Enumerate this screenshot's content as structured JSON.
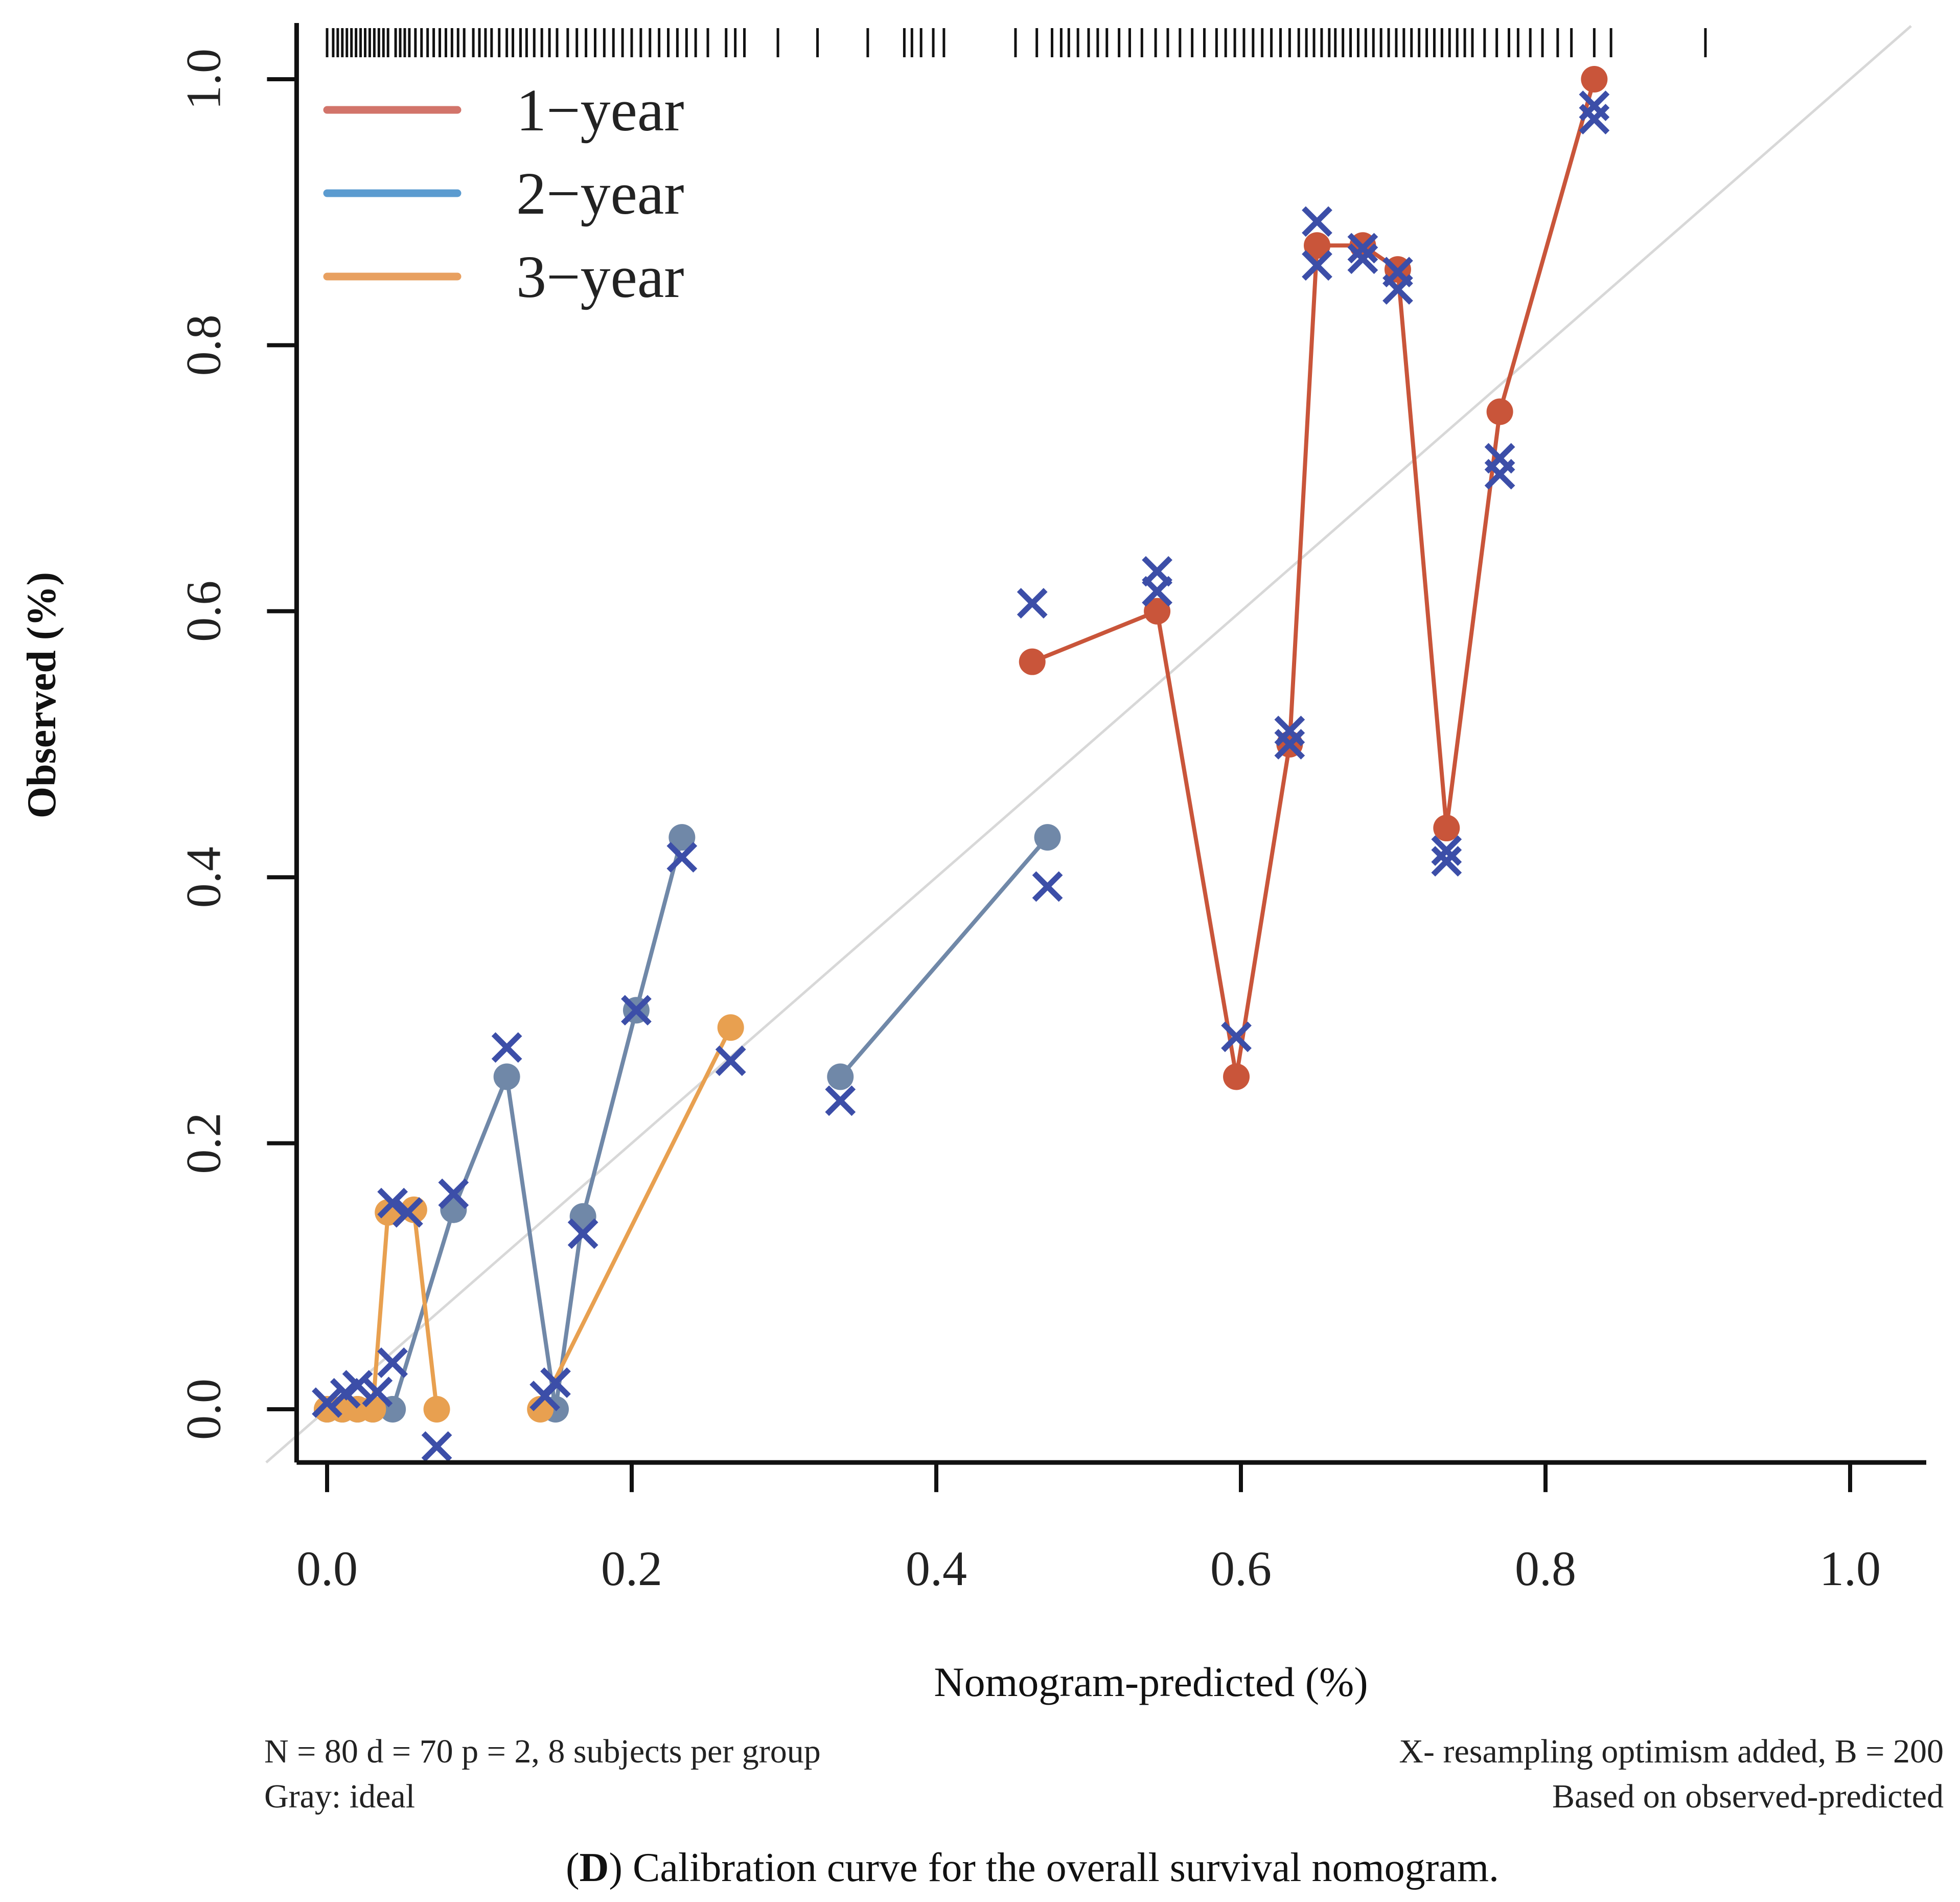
{
  "colors": {
    "one_year": "#c9553a",
    "two_year": "#7088a8",
    "three_year": "#e8a050",
    "legend_one_year": "#d2746a",
    "legend_two_year": "#5b9bd0",
    "legend_three_year": "#e8a060",
    "cross": "#3c4ea8",
    "ideal": "#d8d8d8",
    "axis": "#111111"
  },
  "chart_data": {
    "type": "line",
    "xlabel": "Nomogram-predicted (%)",
    "ylabel": "Observed (%)",
    "xlim": [
      -0.02,
      1.05
    ],
    "ylim": [
      -0.04,
      1.05
    ],
    "x_ticks": [
      0.0,
      0.2,
      0.4,
      0.6,
      0.8,
      1.0
    ],
    "y_ticks": [
      0.0,
      0.2,
      0.4,
      0.6,
      0.8,
      1.0
    ],
    "x_tick_labels": [
      "0.0",
      "0.2",
      "0.4",
      "0.6",
      "0.8",
      "1.0"
    ],
    "y_tick_labels": [
      "0.0",
      "0.2",
      "0.4",
      "0.6",
      "0.8",
      "1.0"
    ],
    "grid": false,
    "legend_position": "top-left",
    "ideal_line": [
      [
        -0.04,
        -0.04
      ],
      [
        1.04,
        1.04
      ]
    ],
    "series": [
      {
        "name": "1−year",
        "color_key": "one_year",
        "segments": [
          [
            [
              0.463,
              0.562
            ],
            [
              0.545,
              0.6
            ],
            [
              0.597,
              0.25
            ],
            [
              0.632,
              0.5
            ],
            [
              0.65,
              0.875
            ],
            [
              0.68,
              0.875
            ],
            [
              0.703,
              0.857
            ],
            [
              0.735,
              0.437
            ],
            [
              0.77,
              0.75
            ],
            [
              0.832,
              1.0
            ]
          ]
        ],
        "crosses": [
          [
            0.463,
            0.606
          ],
          [
            0.545,
            0.63
          ],
          [
            0.545,
            0.615
          ],
          [
            0.597,
            0.28
          ],
          [
            0.632,
            0.51
          ],
          [
            0.632,
            0.5
          ],
          [
            0.65,
            0.893
          ],
          [
            0.65,
            0.86
          ],
          [
            0.68,
            0.873
          ],
          [
            0.68,
            0.865
          ],
          [
            0.703,
            0.855
          ],
          [
            0.703,
            0.842
          ],
          [
            0.735,
            0.42
          ],
          [
            0.735,
            0.412
          ],
          [
            0.77,
            0.715
          ],
          [
            0.77,
            0.703
          ],
          [
            0.832,
            0.98
          ],
          [
            0.832,
            0.97
          ]
        ]
      },
      {
        "name": "2−year",
        "color_key": "two_year",
        "segments": [
          [
            [
              0.0,
              0.0
            ],
            [
              0.01,
              0.0
            ],
            [
              0.02,
              0.0
            ],
            [
              0.03,
              0.0
            ],
            [
              0.043,
              0.0
            ],
            [
              0.083,
              0.15
            ],
            [
              0.118,
              0.25
            ],
            [
              0.15,
              0.0
            ],
            [
              0.168,
              0.145
            ],
            [
              0.203,
              0.3
            ],
            [
              0.233,
              0.43
            ]
          ],
          [
            [
              0.337,
              0.25
            ],
            [
              0.473,
              0.43
            ]
          ]
        ],
        "crosses": [
          [
            0.0,
            0.005
          ],
          [
            0.012,
            0.012
          ],
          [
            0.02,
            0.018
          ],
          [
            0.033,
            0.013
          ],
          [
            0.043,
            0.155
          ],
          [
            0.053,
            0.148
          ],
          [
            0.043,
            0.035
          ],
          [
            0.072,
            -0.028
          ],
          [
            0.083,
            0.162
          ],
          [
            0.118,
            0.272
          ],
          [
            0.143,
            0.01
          ],
          [
            0.15,
            0.02
          ],
          [
            0.168,
            0.132
          ],
          [
            0.203,
            0.3
          ],
          [
            0.233,
            0.415
          ],
          [
            0.265,
            0.262
          ],
          [
            0.337,
            0.232
          ],
          [
            0.473,
            0.393
          ]
        ]
      },
      {
        "name": "3−year",
        "color_key": "three_year",
        "segments": [
          [
            [
              0.0,
              0.0
            ],
            [
              0.01,
              0.0
            ],
            [
              0.02,
              0.0
            ],
            [
              0.03,
              0.0
            ],
            [
              0.04,
              0.148
            ],
            [
              0.057,
              0.15
            ],
            [
              0.072,
              0.0
            ]
          ],
          [
            [
              0.14,
              0.0
            ],
            [
              0.265,
              0.287
            ]
          ]
        ],
        "crosses": []
      }
    ],
    "rug_predicted": [
      0.0,
      0.004,
      0.007,
      0.01,
      0.013,
      0.016,
      0.019,
      0.022,
      0.025,
      0.028,
      0.031,
      0.034,
      0.037,
      0.04,
      0.045,
      0.048,
      0.051,
      0.054,
      0.058,
      0.062,
      0.066,
      0.07,
      0.074,
      0.078,
      0.082,
      0.086,
      0.09,
      0.096,
      0.1,
      0.104,
      0.108,
      0.113,
      0.118,
      0.122,
      0.127,
      0.131,
      0.136,
      0.141,
      0.146,
      0.151,
      0.158,
      0.164,
      0.17,
      0.176,
      0.182,
      0.188,
      0.194,
      0.2,
      0.206,
      0.212,
      0.218,
      0.224,
      0.23,
      0.236,
      0.242,
      0.25,
      0.262,
      0.268,
      0.274,
      0.296,
      0.322,
      0.355,
      0.379,
      0.384,
      0.39,
      0.398,
      0.405,
      0.452,
      0.466,
      0.476,
      0.482,
      0.487,
      0.493,
      0.5,
      0.506,
      0.512,
      0.52,
      0.527,
      0.535,
      0.544,
      0.552,
      0.56,
      0.568,
      0.576,
      0.584,
      0.59,
      0.596,
      0.602,
      0.608,
      0.614,
      0.62,
      0.626,
      0.632,
      0.638,
      0.643,
      0.648,
      0.653,
      0.658,
      0.662,
      0.667,
      0.672,
      0.677,
      0.682,
      0.687,
      0.692,
      0.697,
      0.702,
      0.707,
      0.712,
      0.717,
      0.722,
      0.727,
      0.732,
      0.737,
      0.742,
      0.747,
      0.752,
      0.76,
      0.768,
      0.776,
      0.782,
      0.79,
      0.798,
      0.808,
      0.817,
      0.832,
      0.843,
      0.905
    ]
  },
  "footnote": {
    "left_line1": "N = 80 d = 70 p = 2, 8 subjects per group",
    "left_line2": "Gray: ideal",
    "right_line1": "X- resampling optimism added, B = 200",
    "right_line2": "Based on observed-predicted"
  },
  "caption": {
    "label": "(D)",
    "label_open": "(",
    "label_letter": "D",
    "label_close": ")",
    "text": " Calibration curve for the overall survival nomogram."
  }
}
